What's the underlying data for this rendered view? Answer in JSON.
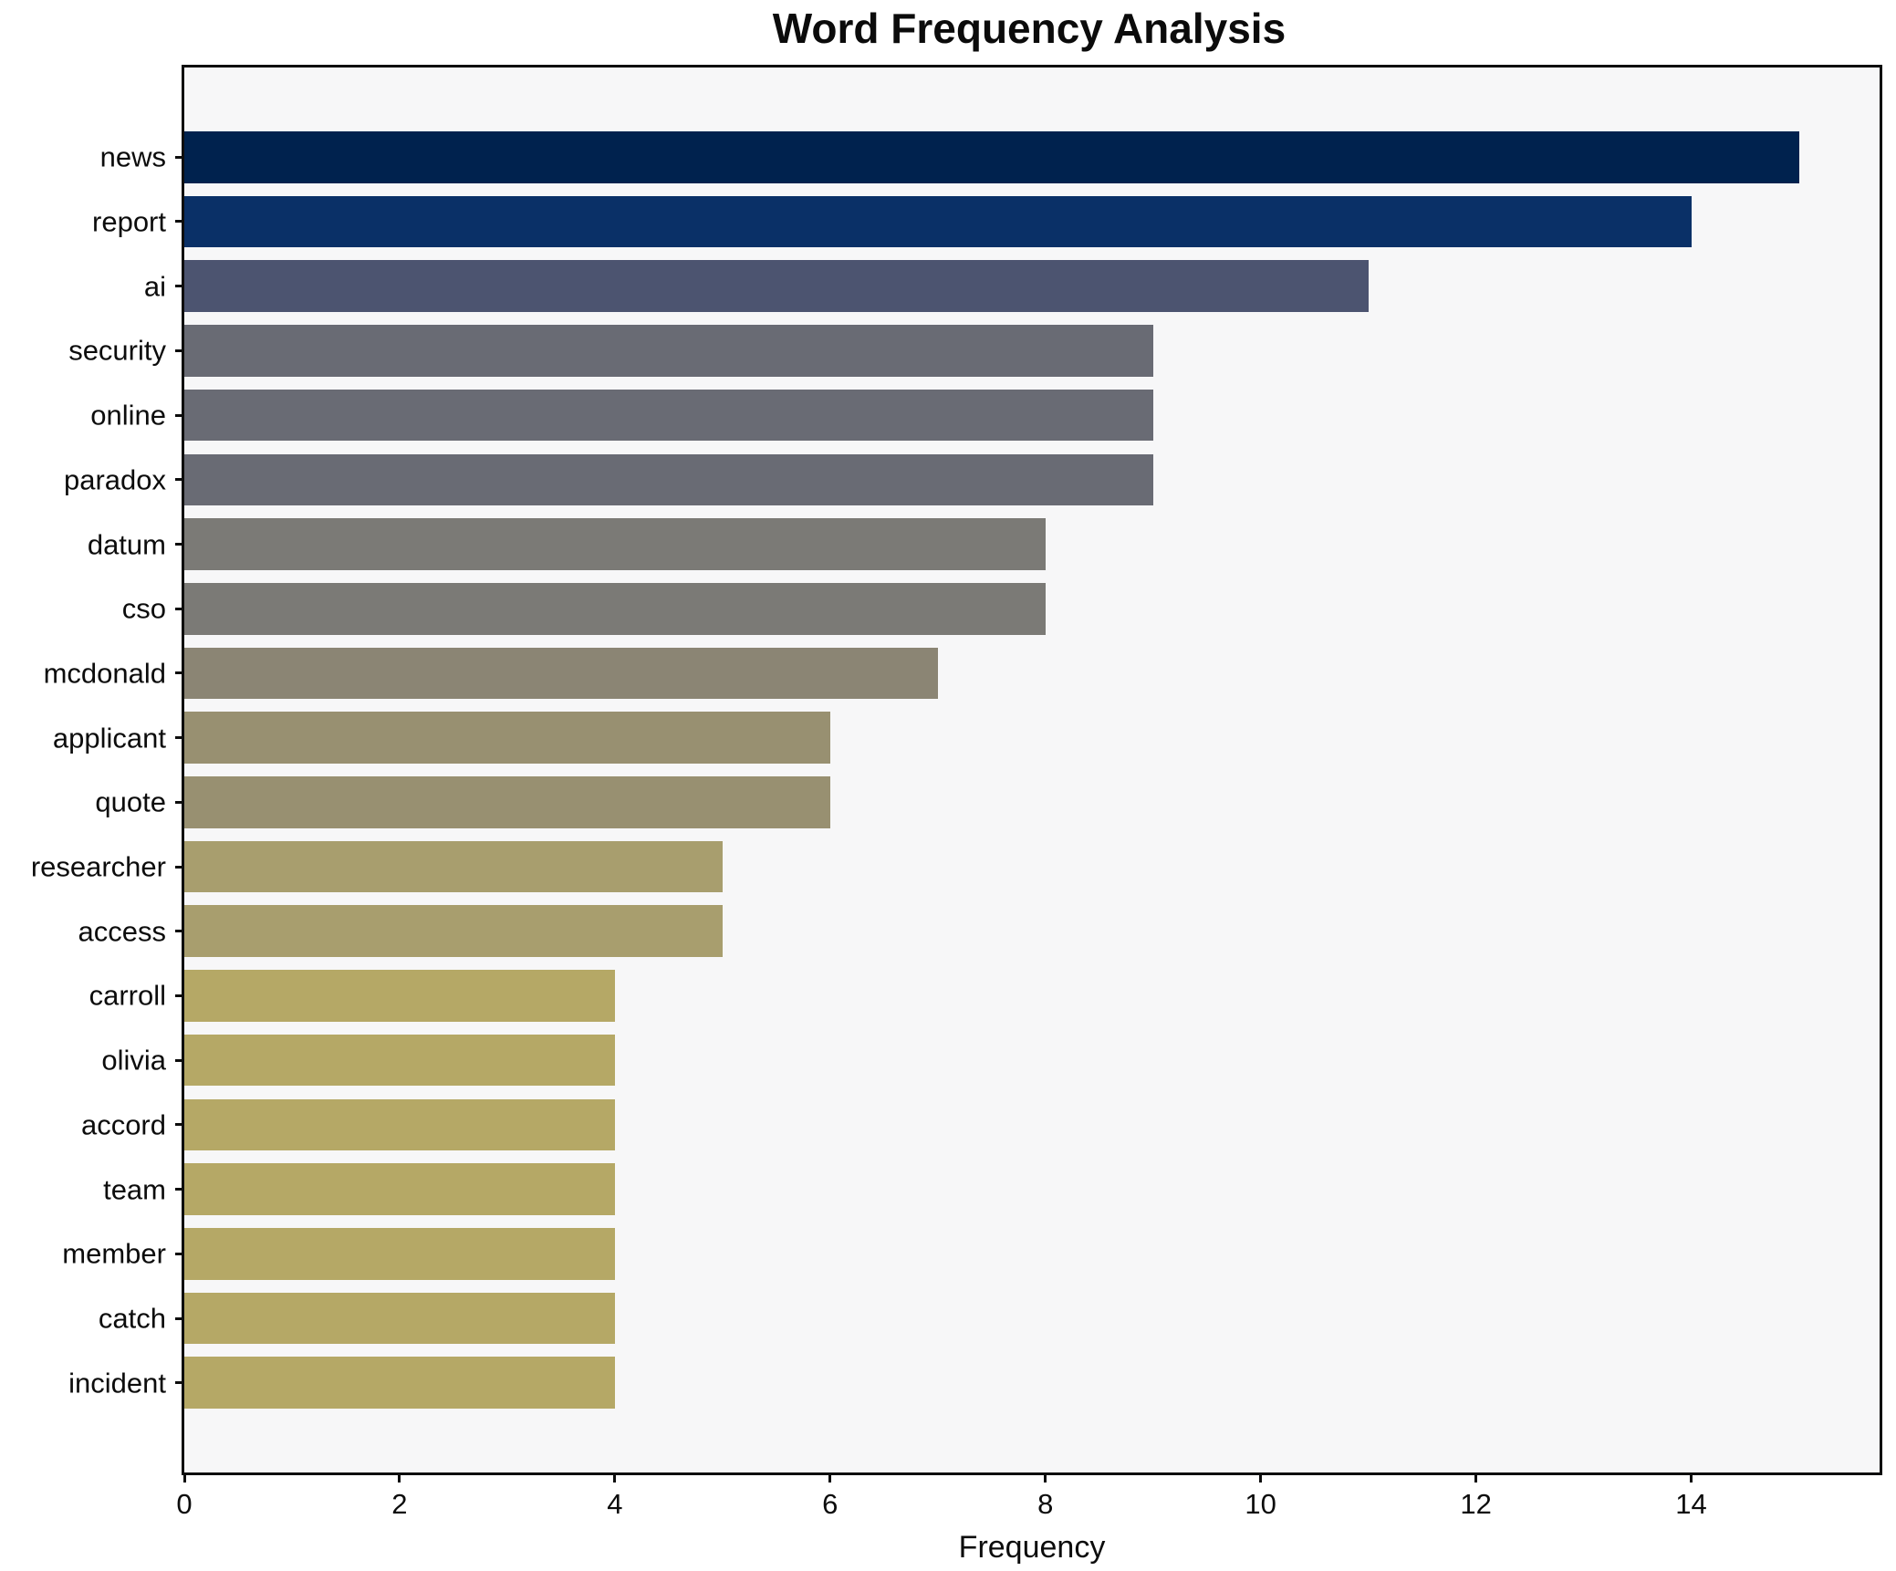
{
  "chart_data": {
    "type": "bar",
    "orientation": "horizontal",
    "title": "Word Frequency Analysis",
    "xlabel": "Frequency",
    "ylabel": "",
    "xlim": [
      0,
      15.75
    ],
    "xticks": [
      0,
      2,
      4,
      6,
      8,
      10,
      12,
      14
    ],
    "grid": false,
    "legend": "none",
    "categories": [
      "news",
      "report",
      "ai",
      "security",
      "online",
      "paradox",
      "datum",
      "cso",
      "mcdonald",
      "applicant",
      "quote",
      "researcher",
      "access",
      "carroll",
      "olivia",
      "accord",
      "team",
      "member",
      "catch",
      "incident"
    ],
    "values": [
      15,
      14,
      11,
      9,
      9,
      9,
      8,
      8,
      7,
      6,
      6,
      5,
      5,
      4,
      4,
      4,
      4,
      4,
      4,
      4
    ],
    "bar_colors": [
      "#00224e",
      "#0a3067",
      "#4c5470",
      "#696b74",
      "#696b74",
      "#696b74",
      "#7b7a76",
      "#7b7a76",
      "#8b8574",
      "#989071",
      "#989071",
      "#a89e6e",
      "#a89e6e",
      "#b5a866",
      "#b5a866",
      "#b5a866",
      "#b5a866",
      "#b5a866",
      "#b5a866",
      "#b5a866"
    ],
    "plot_background": "#f7f7f8",
    "figure_background": "#ffffff",
    "spine_color": "#0d0d0d"
  }
}
